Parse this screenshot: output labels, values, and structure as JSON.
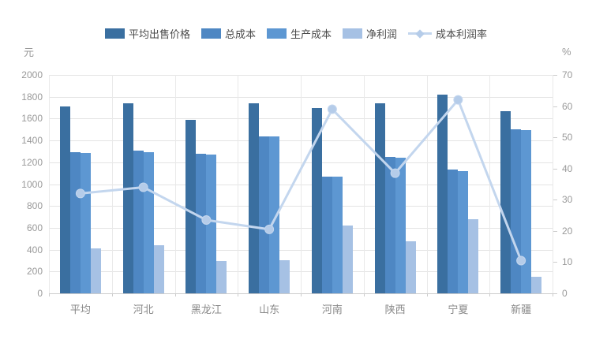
{
  "chart_data": {
    "type": "bar",
    "title": "",
    "categories": [
      "平均",
      "河北",
      "黑龙江",
      "山东",
      "河南",
      "陕西",
      "宁夏",
      "新疆"
    ],
    "bar_series": [
      {
        "name": "平均出售价格",
        "color": "#3a6fa0",
        "axis": "left",
        "values": [
          1710,
          1740,
          1585,
          1740,
          1700,
          1740,
          1820,
          1665
        ]
      },
      {
        "name": "总成本",
        "color": "#4e87c3",
        "axis": "left",
        "values": [
          1290,
          1305,
          1280,
          1440,
          1070,
          1250,
          1135,
          1505
        ]
      },
      {
        "name": "生产成本",
        "color": "#5d97d2",
        "axis": "left",
        "values": [
          1285,
          1295,
          1270,
          1435,
          1065,
          1245,
          1120,
          1495
        ]
      },
      {
        "name": "净利润",
        "color": "#a6c1e4",
        "axis": "left",
        "values": [
          415,
          440,
          295,
          300,
          620,
          475,
          680,
          150
        ]
      }
    ],
    "line_series": [
      {
        "name": "成本利润率",
        "color": "#c3d6ee",
        "marker_color": "#b5cce9",
        "axis": "right",
        "values": [
          32,
          34,
          23.5,
          20.5,
          59,
          38.5,
          62,
          10.5
        ]
      }
    ],
    "left_axis": {
      "unit": "元",
      "min": 0,
      "max": 2000,
      "step": 200
    },
    "right_axis": {
      "unit": "%",
      "min": 0,
      "max": 70,
      "step": 10
    },
    "grid": "on",
    "legend_position": "top"
  }
}
